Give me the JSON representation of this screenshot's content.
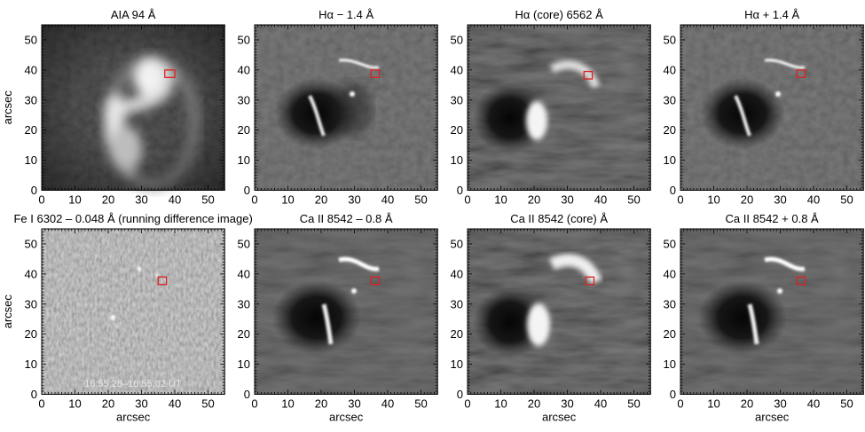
{
  "figure": {
    "axis_label": "arcsec",
    "timestamp": "16:55:25–16:55:02 UT",
    "x_ticks": [
      0,
      10,
      20,
      30,
      40,
      50
    ],
    "y_ticks": [
      0,
      10,
      20,
      30,
      40,
      50
    ],
    "axis_range": [
      0,
      55
    ],
    "marker_color": "#e02020"
  },
  "chart_data": [
    {
      "type": "heatmap",
      "title": "AIA 94 Å",
      "xlabel": "",
      "ylabel": "arcsec",
      "xlim": [
        0,
        55
      ],
      "ylim": [
        0,
        55
      ],
      "marker_box": {
        "x": [
          37,
          40
        ],
        "y": [
          37.5,
          40
        ]
      }
    },
    {
      "type": "heatmap",
      "title": "Hα − 1.4 Å",
      "xlabel": "",
      "ylabel": "",
      "xlim": [
        0,
        55
      ],
      "ylim": [
        0,
        55
      ],
      "marker_box": {
        "x": [
          35,
          37.5
        ],
        "y": [
          37.5,
          40
        ]
      }
    },
    {
      "type": "heatmap",
      "title": "Hα (core) 6562 Å",
      "xlabel": "",
      "ylabel": "",
      "xlim": [
        0,
        55
      ],
      "ylim": [
        0,
        55
      ],
      "marker_box": {
        "x": [
          35,
          37.5
        ],
        "y": [
          37,
          39.5
        ]
      }
    },
    {
      "type": "heatmap",
      "title": "Hα + 1.4 Å",
      "xlabel": "",
      "ylabel": "",
      "xlim": [
        0,
        55
      ],
      "ylim": [
        0,
        55
      ],
      "marker_box": {
        "x": [
          35,
          37.5
        ],
        "y": [
          37.5,
          40
        ]
      }
    },
    {
      "type": "heatmap",
      "title": "Fe I 6302 – 0.048 Å (running difference image)",
      "xlabel": "arcsec",
      "ylabel": "arcsec",
      "xlim": [
        0,
        55
      ],
      "ylim": [
        0,
        55
      ],
      "marker_box": {
        "x": [
          35,
          37.5
        ],
        "y": [
          36.5,
          39
        ]
      }
    },
    {
      "type": "heatmap",
      "title": "Ca II 8542 – 0.8 Å",
      "xlabel": "arcsec",
      "ylabel": "",
      "xlim": [
        0,
        55
      ],
      "ylim": [
        0,
        55
      ],
      "marker_box": {
        "x": [
          35,
          37.5
        ],
        "y": [
          36.5,
          39
        ]
      }
    },
    {
      "type": "heatmap",
      "title": "Ca II 8542 (core) Å",
      "xlabel": "arcsec",
      "ylabel": "",
      "xlim": [
        0,
        55
      ],
      "ylim": [
        0,
        55
      ],
      "marker_box": {
        "x": [
          35.5,
          38
        ],
        "y": [
          36.5,
          39
        ]
      }
    },
    {
      "type": "heatmap",
      "title": "Ca II 8542 + 0.8 Å",
      "xlabel": "arcsec",
      "ylabel": "",
      "xlim": [
        0,
        55
      ],
      "ylim": [
        0,
        55
      ],
      "marker_box": {
        "x": [
          35,
          37.5
        ],
        "y": [
          36.5,
          39
        ]
      }
    }
  ]
}
